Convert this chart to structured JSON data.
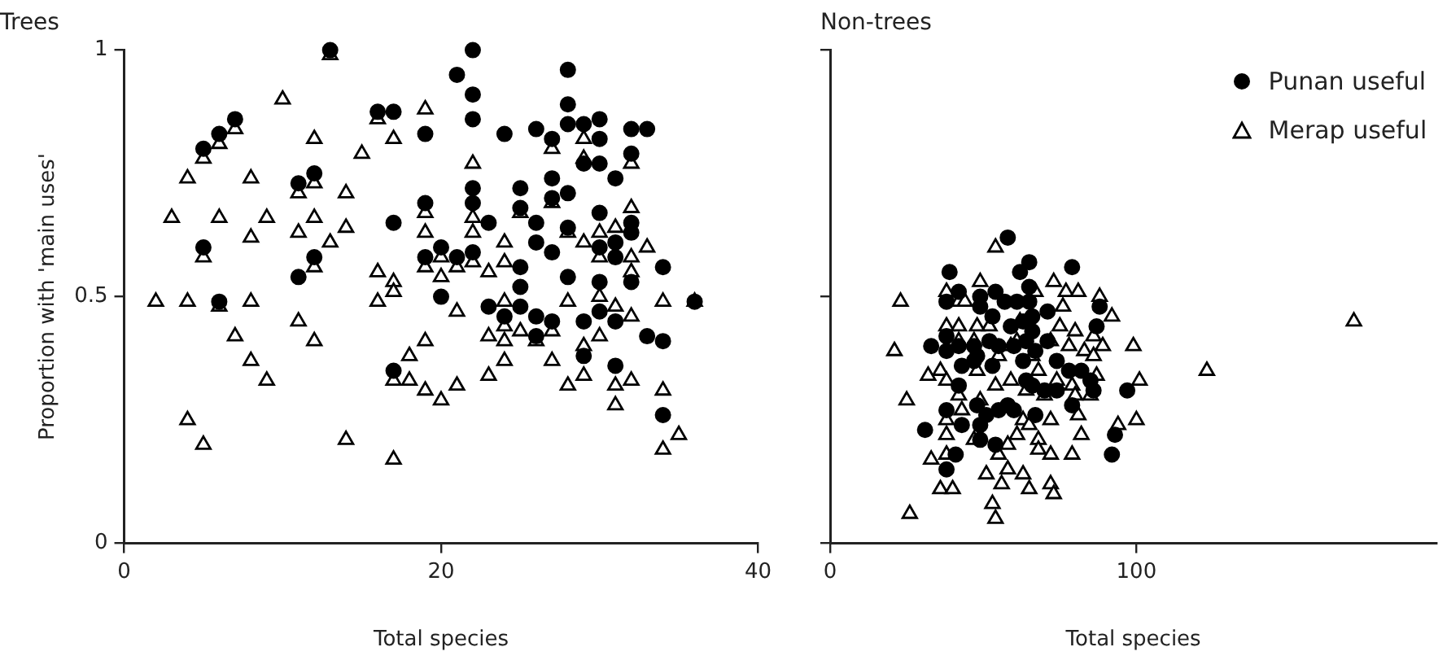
{
  "chart_data": [
    {
      "type": "scatter",
      "title": "Trees",
      "xlabel": "Total species",
      "ylabel": "Proportion with 'main uses'",
      "xlim": [
        0,
        40
      ],
      "xticks": [
        0,
        20,
        40
      ],
      "ylim": [
        0,
        1
      ],
      "yticks": [
        0,
        0.5,
        1
      ],
      "grid": false,
      "legend": false,
      "series": [
        {
          "color": "#000000",
          "marker": "circle",
          "x": [
            13,
            16,
            17,
            7,
            6,
            5,
            12,
            11,
            17,
            5,
            12,
            11,
            6,
            17,
            22,
            21,
            28,
            22,
            28,
            22,
            28,
            29,
            30,
            19,
            24,
            26,
            32,
            33,
            27,
            30,
            32,
            29,
            30,
            31,
            27,
            28,
            22,
            25,
            27,
            19,
            22,
            25,
            23,
            26,
            28,
            30,
            32,
            32,
            26,
            27,
            20,
            21,
            22,
            19,
            31,
            31,
            30,
            25,
            28,
            30,
            32,
            34,
            25,
            20,
            23,
            25,
            24,
            26,
            27,
            26,
            29,
            30,
            31,
            33,
            34,
            29,
            31,
            34,
            36
          ],
          "values": [
            1.0,
            0.875,
            0.875,
            0.86,
            0.83,
            0.8,
            0.75,
            0.73,
            0.65,
            0.6,
            0.58,
            0.54,
            0.49,
            0.35,
            1.0,
            0.95,
            0.96,
            0.91,
            0.89,
            0.86,
            0.85,
            0.85,
            0.86,
            0.83,
            0.83,
            0.84,
            0.84,
            0.84,
            0.82,
            0.82,
            0.79,
            0.77,
            0.77,
            0.74,
            0.74,
            0.71,
            0.72,
            0.72,
            0.7,
            0.69,
            0.69,
            0.68,
            0.65,
            0.65,
            0.64,
            0.67,
            0.65,
            0.63,
            0.61,
            0.59,
            0.6,
            0.58,
            0.59,
            0.58,
            0.61,
            0.58,
            0.6,
            0.56,
            0.54,
            0.53,
            0.53,
            0.56,
            0.52,
            0.5,
            0.48,
            0.48,
            0.46,
            0.46,
            0.45,
            0.42,
            0.45,
            0.47,
            0.45,
            0.42,
            0.41,
            0.38,
            0.36,
            0.26,
            0.49
          ]
        },
        {
          "color": "#000000",
          "marker": "triangle",
          "x": [
            13,
            10,
            16,
            12,
            17,
            7,
            6,
            15,
            5,
            4,
            8,
            14,
            11,
            12,
            3,
            6,
            9,
            12,
            11,
            14,
            8,
            13,
            5,
            12,
            16,
            17,
            17,
            2,
            4,
            6,
            8,
            16,
            11,
            7,
            12,
            8,
            9,
            17,
            4,
            5,
            14,
            17,
            19,
            22,
            29,
            27,
            29,
            32,
            19,
            22,
            25,
            27,
            32,
            19,
            22,
            24,
            28,
            29,
            30,
            31,
            33,
            20,
            19,
            21,
            22,
            24,
            23,
            32,
            32,
            30,
            20,
            24,
            24,
            21,
            25,
            26,
            27,
            23,
            24,
            28,
            30,
            31,
            32,
            34,
            29,
            30,
            19,
            18,
            18,
            19,
            20,
            21,
            23,
            24,
            27,
            28,
            29,
            31,
            32,
            31,
            34,
            34,
            35,
            36
          ],
          "values": [
            0.99,
            0.9,
            0.86,
            0.82,
            0.82,
            0.84,
            0.81,
            0.79,
            0.78,
            0.74,
            0.74,
            0.71,
            0.71,
            0.73,
            0.66,
            0.66,
            0.66,
            0.66,
            0.63,
            0.64,
            0.62,
            0.61,
            0.58,
            0.56,
            0.55,
            0.53,
            0.51,
            0.49,
            0.49,
            0.48,
            0.49,
            0.49,
            0.45,
            0.42,
            0.41,
            0.37,
            0.33,
            0.33,
            0.25,
            0.2,
            0.21,
            0.17,
            0.88,
            0.77,
            0.82,
            0.8,
            0.78,
            0.77,
            0.67,
            0.66,
            0.67,
            0.69,
            0.68,
            0.63,
            0.63,
            0.61,
            0.63,
            0.61,
            0.63,
            0.64,
            0.6,
            0.58,
            0.56,
            0.56,
            0.57,
            0.57,
            0.55,
            0.58,
            0.55,
            0.58,
            0.54,
            0.49,
            0.44,
            0.47,
            0.43,
            0.41,
            0.43,
            0.42,
            0.41,
            0.49,
            0.5,
            0.48,
            0.46,
            0.49,
            0.4,
            0.42,
            0.41,
            0.38,
            0.33,
            0.31,
            0.29,
            0.32,
            0.34,
            0.37,
            0.37,
            0.32,
            0.34,
            0.32,
            0.33,
            0.28,
            0.31,
            0.19,
            0.22,
            0.49
          ]
        }
      ]
    },
    {
      "type": "scatter",
      "title": "Non-trees",
      "xlabel": "Total species",
      "xlim": [
        0,
        198
      ],
      "xticks": [
        0,
        100
      ],
      "ylim": [
        0,
        1
      ],
      "yticks": [
        0,
        0.5,
        1
      ],
      "tick_labels": "x",
      "grid": false,
      "legend": "top right",
      "series": [
        {
          "name": "Punan useful",
          "color": "#000000",
          "marker": "circle",
          "x": [
            58,
            65,
            62,
            79,
            39,
            42,
            38,
            49,
            54,
            57,
            61,
            65,
            65,
            71,
            66,
            88,
            49,
            53,
            38,
            33,
            38,
            42,
            47,
            52,
            55,
            59,
            63,
            64,
            66,
            71,
            67,
            74,
            78,
            82,
            87,
            43,
            47,
            53,
            64,
            66,
            70,
            74,
            85,
            86,
            97,
            42,
            38,
            43,
            48,
            51,
            55,
            58,
            60,
            49,
            67,
            79,
            31,
            41,
            49,
            54,
            38,
            93,
            92,
            48,
            60,
            63
          ],
          "values": [
            0.62,
            0.57,
            0.55,
            0.56,
            0.55,
            0.51,
            0.49,
            0.5,
            0.51,
            0.49,
            0.49,
            0.52,
            0.49,
            0.47,
            0.46,
            0.48,
            0.48,
            0.46,
            0.42,
            0.4,
            0.39,
            0.4,
            0.4,
            0.41,
            0.4,
            0.44,
            0.45,
            0.41,
            0.43,
            0.41,
            0.39,
            0.37,
            0.35,
            0.35,
            0.44,
            0.36,
            0.37,
            0.36,
            0.33,
            0.32,
            0.31,
            0.31,
            0.33,
            0.31,
            0.31,
            0.32,
            0.27,
            0.24,
            0.28,
            0.26,
            0.27,
            0.28,
            0.27,
            0.24,
            0.26,
            0.28,
            0.23,
            0.18,
            0.21,
            0.2,
            0.15,
            0.22,
            0.18,
            0.38,
            0.4,
            0.37
          ]
        },
        {
          "name": "Merap useful",
          "color": "#000000",
          "marker": "triangle",
          "x": [
            54,
            73,
            49,
            23,
            38,
            42,
            44,
            67,
            77,
            81,
            88,
            76,
            92,
            38,
            42,
            52,
            48,
            62,
            75,
            80,
            86,
            89,
            99,
            21,
            42,
            47,
            61,
            72,
            78,
            83,
            86,
            36,
            32,
            38,
            48,
            55,
            59,
            66,
            68,
            74,
            79,
            87,
            101,
            25,
            42,
            49,
            54,
            59,
            64,
            70,
            80,
            85,
            38,
            43,
            63,
            72,
            65,
            81,
            100,
            94,
            38,
            47,
            61,
            68,
            82,
            33,
            38,
            58,
            68,
            72,
            79,
            55,
            51,
            58,
            63,
            56,
            65,
            72,
            36,
            40,
            73,
            53,
            54,
            26,
            123,
            171
          ],
          "values": [
            0.6,
            0.53,
            0.53,
            0.49,
            0.51,
            0.49,
            0.49,
            0.51,
            0.51,
            0.51,
            0.5,
            0.48,
            0.46,
            0.44,
            0.44,
            0.44,
            0.44,
            0.45,
            0.44,
            0.43,
            0.42,
            0.4,
            0.4,
            0.39,
            0.41,
            0.41,
            0.41,
            0.41,
            0.4,
            0.39,
            0.38,
            0.35,
            0.34,
            0.33,
            0.35,
            0.38,
            0.4,
            0.38,
            0.35,
            0.33,
            0.32,
            0.34,
            0.33,
            0.29,
            0.3,
            0.29,
            0.32,
            0.33,
            0.31,
            0.3,
            0.3,
            0.3,
            0.25,
            0.27,
            0.25,
            0.25,
            0.24,
            0.26,
            0.25,
            0.24,
            0.22,
            0.21,
            0.22,
            0.21,
            0.22,
            0.17,
            0.18,
            0.2,
            0.19,
            0.18,
            0.18,
            0.18,
            0.14,
            0.15,
            0.14,
            0.12,
            0.11,
            0.12,
            0.11,
            0.11,
            0.1,
            0.08,
            0.05,
            0.06,
            0.35,
            0.45
          ]
        }
      ]
    }
  ]
}
